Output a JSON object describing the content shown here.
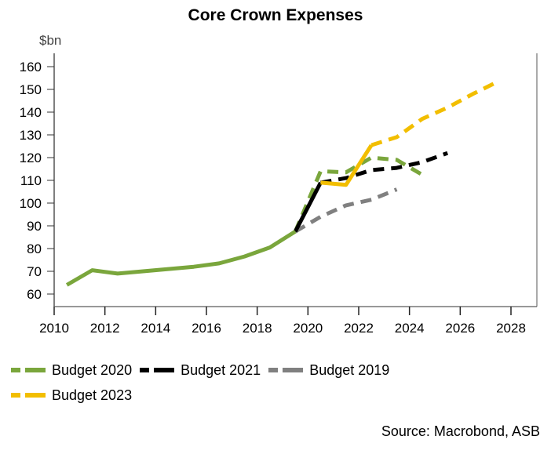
{
  "chart_data": {
    "type": "line",
    "title": "Core Crown Expenses",
    "ylabel": "$bn",
    "xlabel": "",
    "ylim": [
      60,
      160
    ],
    "xlim": [
      2010,
      2029
    ],
    "yticks": [
      60,
      70,
      80,
      90,
      100,
      110,
      120,
      130,
      140,
      150,
      160
    ],
    "xticks": [
      2010,
      2012,
      2014,
      2016,
      2018,
      2020,
      2022,
      2024,
      2026,
      2028
    ],
    "grid": false,
    "legend_position": "bottom",
    "source": "Source: Macrobond, ASB",
    "series": [
      {
        "name": "Budget 2019",
        "color": "#808080",
        "solid": {
          "x": [],
          "y": []
        },
        "dashed": {
          "x": [
            2019.5,
            2020.5,
            2021.5,
            2022.5,
            2023.5
          ],
          "y": [
            87.5,
            94,
            99,
            101.5,
            106
          ]
        }
      },
      {
        "name": "Budget 2020",
        "color": "#7aa63c",
        "solid": {
          "x": [
            2010.5,
            2011.5,
            2012.5,
            2013.5,
            2014.5,
            2015.5,
            2016.5,
            2017.5,
            2018.5,
            2019.5
          ],
          "y": [
            64,
            70.5,
            69,
            70,
            71,
            72,
            73.5,
            76.5,
            80.5,
            87.5
          ]
        },
        "dashed": {
          "x": [
            2019.5,
            2020.5,
            2021.5,
            2022.5,
            2023.5,
            2024.5
          ],
          "y": [
            87.5,
            114,
            113.5,
            120,
            119,
            112.5
          ]
        }
      },
      {
        "name": "Budget 2021",
        "color": "#000000",
        "solid": {
          "x": [
            2019.5,
            2020.5
          ],
          "y": [
            87.5,
            109
          ]
        },
        "dashed": {
          "x": [
            2020.5,
            2021.5,
            2022.5,
            2023.5,
            2024.5,
            2025.5
          ],
          "y": [
            109,
            111,
            114.5,
            115.5,
            118,
            122
          ]
        }
      },
      {
        "name": "Budget 2023",
        "color": "#f2be00",
        "solid": {
          "x": [
            2020.5,
            2021.5,
            2022.5
          ],
          "y": [
            109,
            108,
            125.5
          ]
        },
        "dashed": {
          "x": [
            2022.5,
            2023.5,
            2024.5,
            2025.5,
            2026.5,
            2027.5
          ],
          "y": [
            125.5,
            129,
            137,
            142,
            148,
            153.5
          ]
        }
      }
    ],
    "legend": [
      {
        "name": "Budget 2020",
        "color": "#7aa63c"
      },
      {
        "name": "Budget 2021",
        "color": "#000000"
      },
      {
        "name": "Budget 2019",
        "color": "#808080"
      },
      {
        "name": "Budget 2023",
        "color": "#f2be00"
      }
    ]
  }
}
